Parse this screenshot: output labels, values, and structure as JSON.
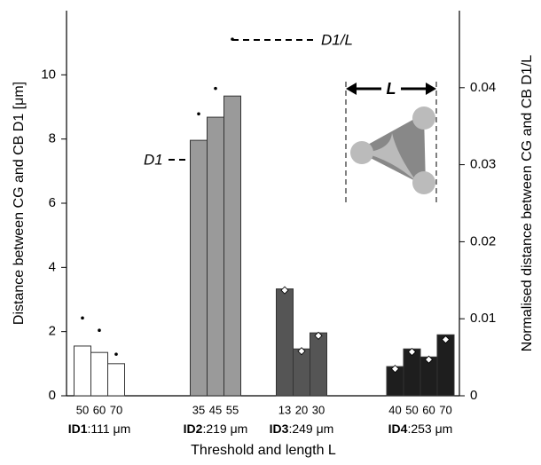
{
  "chart_data": {
    "type": "bar",
    "y_label": "Distance between CG and CB D1 [μm]",
    "y2_label": "Normalised distance between CG and CB D1/L",
    "x_label": "Threshold and length L",
    "ylim": [
      0,
      12
    ],
    "yticks": [
      0,
      2,
      4,
      6,
      8,
      10
    ],
    "y2lim": [
      0,
      0.05
    ],
    "y2ticks": [
      0,
      0.01,
      0.02,
      0.03,
      0.04
    ],
    "annotations": {
      "ratio": "D1/L",
      "distance": "D1",
      "length": "L"
    },
    "groups": [
      {
        "name": "ID1",
        "length": ":111 μm",
        "color": "#ffffff",
        "marker_color": "#000000",
        "categories": [
          "50",
          "60",
          "70"
        ],
        "values": [
          1.55,
          1.35,
          1.0
        ],
        "ratios": [
          0.0101,
          0.0085,
          0.0054
        ]
      },
      {
        "name": "ID2",
        "length": ":219 μm",
        "color": "#9a9a9a",
        "marker_color": "#000000",
        "categories": [
          "35",
          "45",
          "55"
        ],
        "values": [
          7.96,
          8.68,
          9.34
        ],
        "ratios": [
          0.0366,
          0.0399,
          0.0463
        ]
      },
      {
        "name": "ID3",
        "length": ":249 μm",
        "color": "#555555",
        "marker_color": "#ffffff",
        "categories": [
          "13",
          "20",
          "30"
        ],
        "values": [
          3.33,
          1.46,
          1.96
        ],
        "ratios": [
          0.0137,
          0.0058,
          0.0078
        ]
      },
      {
        "name": "ID4",
        "length": ":253 μm",
        "color": "#1e1e1e",
        "marker_color": "#ffffff",
        "categories": [
          "40",
          "50",
          "60",
          "70"
        ],
        "values": [
          0.91,
          1.46,
          1.21,
          1.9
        ],
        "ratios": [
          0.0035,
          0.0057,
          0.0047,
          0.0073
        ]
      }
    ]
  }
}
